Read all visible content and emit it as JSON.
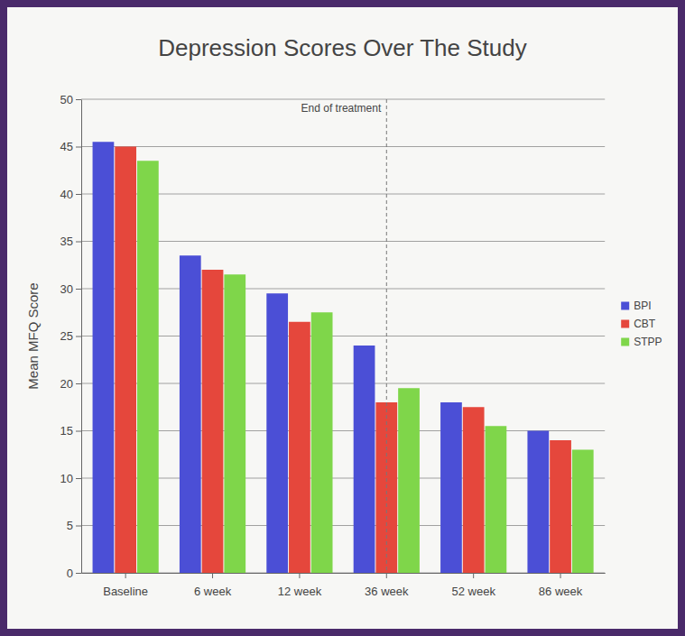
{
  "chart_data": {
    "type": "bar",
    "title": "Depression Scores Over The Study",
    "y_label": "Mean MFQ Score",
    "categories": [
      "Baseline",
      "6 week",
      "12 week",
      "36 week",
      "52 week",
      "86 week"
    ],
    "series": [
      {
        "name": "BPI",
        "color": "#4b4fd6",
        "values": [
          45.5,
          33.5,
          29.5,
          24,
          18,
          15
        ]
      },
      {
        "name": "CBT",
        "color": "#e5473c",
        "values": [
          45,
          32,
          26.5,
          18,
          17.5,
          14
        ]
      },
      {
        "name": "STPP",
        "color": "#7fd64a",
        "values": [
          43.5,
          31.5,
          27.5,
          19.5,
          15.5,
          13
        ]
      }
    ],
    "ylim": [
      0,
      50
    ],
    "yticks": [
      0,
      5,
      10,
      15,
      20,
      25,
      30,
      35,
      40,
      45,
      50
    ],
    "grid": true,
    "legend": "right",
    "annotations": [
      {
        "text": "End of treatment",
        "x": "36 week"
      }
    ]
  }
}
